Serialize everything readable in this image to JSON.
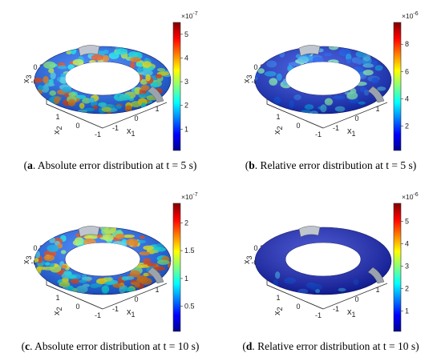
{
  "panels": [
    {
      "id": "a",
      "caption_label": "a",
      "caption_text": ". Absolute error distribution at t = 5 s",
      "surface": "multi",
      "colorbar": {
        "multiplier": "×10",
        "exponent": "-7",
        "ticks": [
          "5",
          "4",
          "3",
          "2",
          "1"
        ],
        "tick_vals": [
          5,
          4,
          3,
          2,
          1
        ],
        "min": 0.1,
        "max": 5.5
      },
      "axes": {
        "x1_label": "x",
        "x1_sub": "1",
        "x2_label": "x",
        "x2_sub": "2",
        "x3_label": "x",
        "x3_sub": "3",
        "x1_ticks": [
          "-1",
          "0",
          "1"
        ],
        "x2_ticks": [
          "1",
          "0",
          "-1"
        ],
        "x3_ticks": [
          "0.2",
          "0",
          "-0.2"
        ]
      }
    },
    {
      "id": "b",
      "caption_label": "b",
      "caption_text": ". Relative error distribution at t = 5 s",
      "surface": "blue",
      "colorbar": {
        "multiplier": "×10",
        "exponent": "-6",
        "ticks": [
          "8",
          "6",
          "4",
          "2"
        ],
        "tick_vals": [
          8,
          6,
          4,
          2
        ],
        "min": 0.2,
        "max": 9.6
      },
      "axes": {
        "x1_label": "x",
        "x1_sub": "1",
        "x2_label": "x",
        "x2_sub": "2",
        "x3_label": "x",
        "x3_sub": "3",
        "x1_ticks": [
          "-1",
          "0",
          "1"
        ],
        "x2_ticks": [
          "1",
          "0",
          "-1"
        ],
        "x3_ticks": [
          "0.2",
          "0",
          "-0.2"
        ]
      }
    },
    {
      "id": "c",
      "caption_label": "c",
      "caption_text": ". Absolute error distribution at t = 10 s",
      "surface": "multi",
      "colorbar": {
        "multiplier": "×10",
        "exponent": "-7",
        "ticks": [
          "2",
          "1.5",
          "1",
          "0.5"
        ],
        "tick_vals": [
          2,
          1.5,
          1,
          0.5
        ],
        "min": 0.05,
        "max": 2.35
      },
      "axes": {
        "x1_label": "x",
        "x1_sub": "1",
        "x2_label": "x",
        "x2_sub": "2",
        "x3_label": "x",
        "x3_sub": "3",
        "x1_ticks": [
          "-1",
          "0",
          "1"
        ],
        "x2_ticks": [
          "1",
          "0",
          "-1"
        ],
        "x3_ticks": [
          "0.2",
          "0",
          "-0.2"
        ]
      }
    },
    {
      "id": "d",
      "caption_label": "d",
      "caption_text": ". Relative error distribution at t = 10 s",
      "surface": "deepblue",
      "colorbar": {
        "multiplier": "×10",
        "exponent": "-6",
        "ticks": [
          "5",
          "4",
          "3",
          "2",
          "1"
        ],
        "tick_vals": [
          5,
          4,
          3,
          2,
          1
        ],
        "min": 0.1,
        "max": 5.8
      },
      "axes": {
        "x1_label": "x",
        "x1_sub": "1",
        "x2_label": "x",
        "x2_sub": "2",
        "x3_label": "x",
        "x3_sub": "3",
        "x1_ticks": [
          "-1",
          "0",
          "1"
        ],
        "x2_ticks": [
          "1",
          "0",
          "-1"
        ],
        "x3_ticks": [
          "0.2",
          "0",
          "-0.2"
        ]
      }
    }
  ],
  "colors": {
    "jet": [
      "#00008f",
      "#0000ff",
      "#0080ff",
      "#00ffff",
      "#80ff80",
      "#ffff00",
      "#ff8000",
      "#ff0000",
      "#800000"
    ]
  }
}
